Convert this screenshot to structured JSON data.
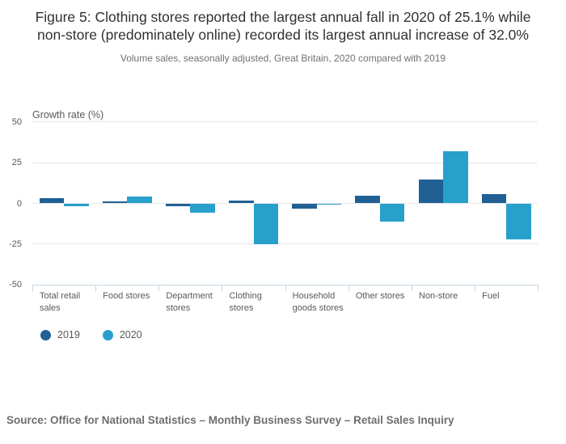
{
  "title": "Figure 5: Clothing stores reported the largest annual fall in 2020 of 25.1% while non-store (predominately online) recorded its largest annual increase of 32.0%",
  "subtitle": "Volume sales, seasonally adjusted, Great Britain, 2020 compared with 2019",
  "source": "Source: Office for National Statistics – Monthly Business Survey – Retail Sales Inquiry",
  "chart_data": {
    "type": "bar",
    "axis_title": "Growth rate (%)",
    "categories": [
      "Total retail sales",
      "Food stores",
      "Department stores",
      "Clothing stores",
      "Household goods stores",
      "Other stores",
      "Non-store",
      "Fuel"
    ],
    "series": [
      {
        "name": "2019",
        "color": "#206095",
        "values": [
          3.4,
          1.3,
          -1.5,
          1.5,
          -3.0,
          4.6,
          14.6,
          5.8
        ]
      },
      {
        "name": "2020",
        "color": "#27A0CC",
        "values": [
          -1.9,
          4.3,
          -5.8,
          -25.1,
          -0.9,
          -11.0,
          32.0,
          -22.2
        ]
      }
    ],
    "ylabel": "Growth rate (%)",
    "xlabel": "",
    "ylim": [
      -50,
      50
    ],
    "y_ticks": [
      50,
      25,
      0,
      -25,
      -50
    ],
    "grid": true,
    "legend_position": "bottom-left"
  }
}
